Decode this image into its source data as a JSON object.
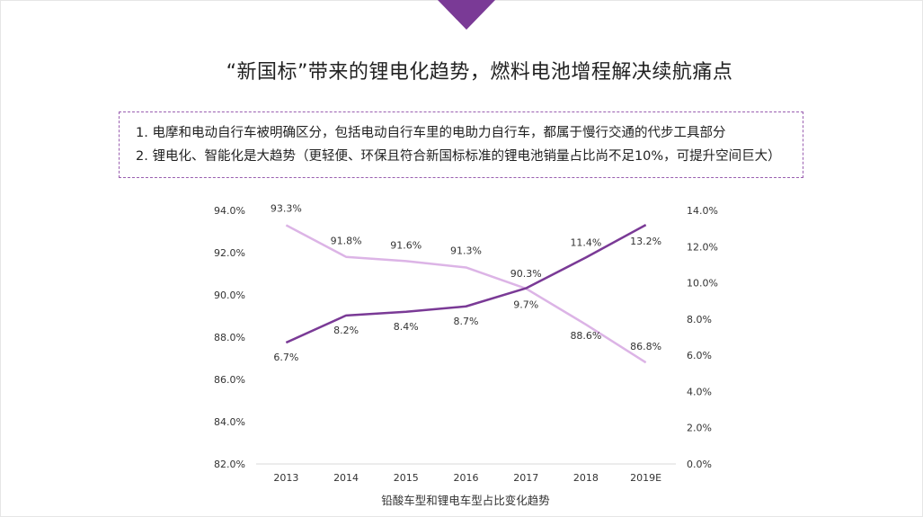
{
  "slide": {
    "title": "“新国标”带来的锂电化趋势，燃料电池增程解决续航痛点",
    "notes": [
      "1.  电摩和电动自行车被明确区分，包括电动自行车里的电助力自行车，都属于慢行交通的代步工具部分",
      "2. 锂电化、智能化是大趋势（更轻便、环保且符合新国标标准的锂电池销量占比尚不足10%，可提升空间巨大）"
    ],
    "accent_color": "#7a3a96"
  },
  "chart_data": {
    "type": "line",
    "title": "铅酸车型和锂电车型占比变化趋势",
    "categories": [
      "2013",
      "2014",
      "2015",
      "2016",
      "2017",
      "2018",
      "2019E"
    ],
    "series": [
      {
        "axis": "left",
        "color": "#dcb4e6",
        "values": [
          93.3,
          91.8,
          91.6,
          91.3,
          90.3,
          88.6,
          86.8
        ],
        "labels": [
          "93.3%",
          "91.8%",
          "91.6%",
          "91.3%",
          "90.3%",
          "88.6%",
          "86.8%"
        ]
      },
      {
        "axis": "right",
        "color": "#7a3a96",
        "values": [
          6.7,
          8.2,
          8.4,
          8.7,
          9.7,
          11.4,
          13.2
        ],
        "labels": [
          "6.7%",
          "8.2%",
          "8.4%",
          "8.7%",
          "9.7%",
          "11.4%",
          "13.2%"
        ]
      }
    ],
    "y_left": {
      "ylim": [
        82,
        94
      ],
      "ticks": [
        "82.0%",
        "84.0%",
        "86.0%",
        "88.0%",
        "90.0%",
        "92.0%",
        "94.0%"
      ],
      "tick_values": [
        82,
        84,
        86,
        88,
        90,
        92,
        94
      ]
    },
    "y_right": {
      "ylim": [
        0,
        14
      ],
      "ticks": [
        "0.0%",
        "2.0%",
        "4.0%",
        "6.0%",
        "8.0%",
        "10.0%",
        "12.0%",
        "14.0%"
      ],
      "tick_values": [
        0,
        2,
        4,
        6,
        8,
        10,
        12,
        14
      ]
    },
    "grid": false,
    "legend": "none"
  }
}
